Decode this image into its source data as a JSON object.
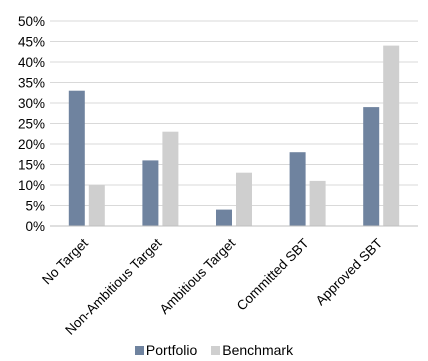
{
  "chart_data": {
    "type": "bar",
    "categories": [
      "No Target",
      "Non-Ambitious Target",
      "Ambitious Target",
      "Committed SBT",
      "Approved SBT"
    ],
    "series": [
      {
        "name": "Portfolio",
        "values": [
          33,
          16,
          4,
          18,
          29
        ],
        "color": "#6f839f"
      },
      {
        "name": "Benchmark",
        "values": [
          10,
          23,
          13,
          11,
          44
        ],
        "color": "#cfcfcf"
      }
    ],
    "ylim": [
      0,
      50
    ],
    "yticks": [
      "0%",
      "5%",
      "10%",
      "15%",
      "20%",
      "25%",
      "30%",
      "35%",
      "40%",
      "45%",
      "50%"
    ],
    "grid": true,
    "legend": "bottom"
  }
}
